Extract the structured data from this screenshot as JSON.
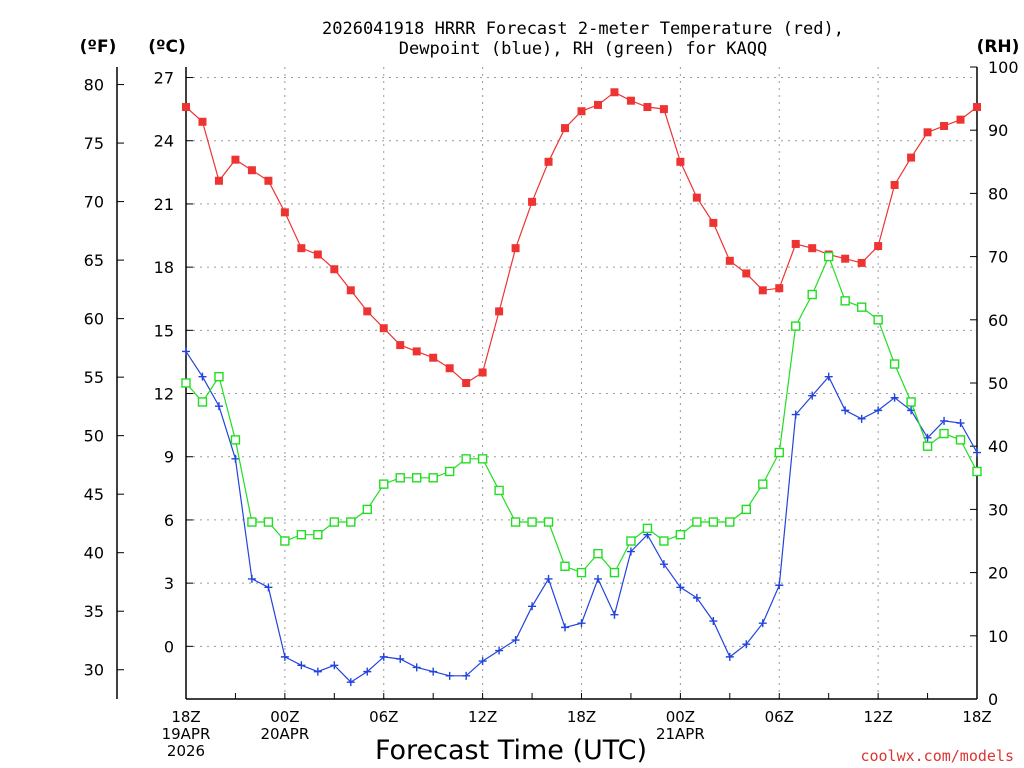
{
  "chart_data": {
    "type": "line",
    "title": "2026041918 HRRR Forecast 2-meter Temperature (red), Dewpoint (blue), RH (green) for KAQQ",
    "title_lines": [
      "2026041918 HRRR Forecast 2-meter Temperature (red),",
      "Dewpoint (blue), RH (green) for KAQQ"
    ],
    "xlabel": "Forecast Time (UTC)",
    "credit": "coolwx.com/models",
    "left_outer_axis_label": "(ºF)",
    "left_axis_label": "(ºC)",
    "right_axis_label": "(RH)",
    "x_range_hours": [
      0,
      48
    ],
    "x_tick_labels": [
      {
        "hour": 0,
        "lines": [
          "18Z",
          "19APR",
          "2026"
        ]
      },
      {
        "hour": 6,
        "lines": [
          "00Z",
          "20APR"
        ]
      },
      {
        "hour": 12,
        "lines": [
          "06Z"
        ]
      },
      {
        "hour": 18,
        "lines": [
          "12Z"
        ]
      },
      {
        "hour": 24,
        "lines": [
          "18Z"
        ]
      },
      {
        "hour": 30,
        "lines": [
          "00Z",
          "21APR"
        ]
      },
      {
        "hour": 36,
        "lines": [
          "06Z"
        ]
      },
      {
        "hour": 42,
        "lines": [
          "12Z"
        ]
      },
      {
        "hour": 48,
        "lines": [
          "18Z"
        ]
      }
    ],
    "y_celsius_range": [
      -2.5,
      27.5
    ],
    "y_celsius_ticks": [
      0,
      3,
      6,
      9,
      12,
      15,
      18,
      21,
      24,
      27
    ],
    "y_fahrenheit_ticks": [
      30,
      35,
      40,
      45,
      50,
      55,
      60,
      65,
      70,
      75,
      80
    ],
    "y_rh_range": [
      0,
      100
    ],
    "y_rh_ticks": [
      0,
      10,
      20,
      30,
      40,
      50,
      60,
      70,
      80,
      90,
      100
    ],
    "grid": true,
    "series": [
      {
        "name": "Temperature",
        "unit": "C",
        "axis": "celsius",
        "color": "#ee3333",
        "marker": "filled-square",
        "values": [
          25.6,
          24.9,
          22.1,
          23.1,
          22.6,
          22.1,
          20.6,
          18.9,
          18.6,
          17.9,
          16.9,
          15.9,
          15.1,
          14.3,
          14.0,
          13.7,
          13.2,
          12.5,
          13.0,
          15.9,
          18.9,
          21.1,
          23.0,
          24.6,
          25.4,
          25.7,
          26.3,
          25.9,
          25.6,
          25.5,
          23.0,
          21.3,
          20.1,
          18.3,
          17.7,
          16.9,
          17.0,
          19.1,
          18.9,
          18.6,
          18.4,
          18.2,
          19.0,
          21.9,
          23.2,
          24.4,
          24.7,
          25.0,
          25.6
        ]
      },
      {
        "name": "Dewpoint",
        "unit": "C",
        "axis": "celsius",
        "color": "#2244dd",
        "marker": "plus",
        "values": [
          14.0,
          12.8,
          11.4,
          8.9,
          3.2,
          2.8,
          -0.5,
          -0.9,
          -1.2,
          -0.9,
          -1.7,
          -1.2,
          -0.5,
          -0.6,
          -1.0,
          -1.2,
          -1.4,
          -1.4,
          -0.7,
          -0.2,
          0.3,
          1.9,
          3.2,
          0.9,
          1.1,
          3.2,
          1.5,
          4.5,
          5.3,
          3.9,
          2.8,
          2.3,
          1.2,
          -0.5,
          0.1,
          1.1,
          2.9,
          11.0,
          11.9,
          12.8,
          11.2,
          10.8,
          11.2,
          11.8,
          11.2,
          9.9,
          10.7,
          10.6,
          9.2
        ]
      },
      {
        "name": "RH",
        "unit": "%",
        "axis": "rh",
        "color": "#22dd22",
        "marker": "open-square",
        "values": [
          50,
          47,
          51,
          41,
          28,
          28,
          25,
          26,
          26,
          28,
          28,
          30,
          34,
          35,
          35,
          35,
          36,
          38,
          38,
          33,
          28,
          28,
          28,
          21,
          20,
          23,
          20,
          25,
          27,
          25,
          26,
          28,
          28,
          28,
          30,
          34,
          39,
          59,
          64,
          70,
          63,
          62,
          60,
          53,
          47,
          40,
          42,
          41,
          36
        ]
      }
    ]
  }
}
